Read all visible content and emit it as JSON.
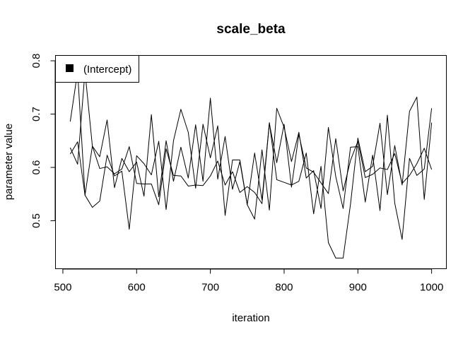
{
  "chart_data": {
    "type": "line",
    "title": "scale_beta",
    "xlabel": "iteration",
    "ylabel": "parameter value",
    "xlim": [
      490,
      1020
    ],
    "ylim": [
      0.41,
      0.81
    ],
    "x_ticks": [
      500,
      600,
      700,
      800,
      900,
      1000
    ],
    "y_ticks": [
      0.5,
      0.6,
      0.7,
      0.8
    ],
    "x_tick_labels": [
      "500",
      "600",
      "700",
      "800",
      "900",
      "1000"
    ],
    "y_tick_labels": [
      "0.5",
      "0.6",
      "0.7",
      "0.8"
    ],
    "grid": false,
    "legend": {
      "position": "top-left",
      "entries": [
        "(Intercept)"
      ]
    },
    "x": [
      510,
      520,
      530,
      540,
      550,
      560,
      570,
      580,
      590,
      600,
      610,
      620,
      630,
      640,
      650,
      660,
      670,
      680,
      690,
      700,
      710,
      720,
      730,
      740,
      750,
      760,
      770,
      780,
      790,
      800,
      810,
      820,
      830,
      840,
      850,
      860,
      870,
      880,
      890,
      900,
      910,
      920,
      930,
      940,
      950,
      960,
      970,
      980,
      990,
      1000
    ],
    "series": [
      {
        "color": "#000000",
        "values": [
          0.686,
          0.78,
          0.548,
          0.64,
          0.62,
          0.689,
          0.562,
          0.617,
          0.592,
          0.61,
          0.546,
          0.699,
          0.545,
          0.65,
          0.574,
          0.638,
          0.58,
          0.68,
          0.574,
          0.73,
          0.578,
          0.658,
          0.559,
          0.611,
          0.53,
          0.503,
          0.633,
          0.52,
          0.711,
          0.675,
          0.611,
          0.666,
          0.58,
          0.594,
          0.523,
          0.675,
          0.583,
          0.523,
          0.638,
          0.639,
          0.535,
          0.623,
          0.519,
          0.698,
          0.533,
          0.465,
          0.617,
          0.585,
          0.597,
          0.711
        ]
      },
      {
        "color": "#000000",
        "values": [
          0.625,
          0.648,
          0.548,
          0.525,
          0.537,
          0.623,
          0.584,
          0.593,
          0.484,
          0.622,
          0.607,
          0.586,
          0.649,
          0.521,
          0.65,
          0.709,
          0.666,
          0.561,
          0.681,
          0.618,
          0.678,
          0.51,
          0.614,
          0.614,
          0.53,
          0.627,
          0.539,
          0.684,
          0.577,
          0.572,
          0.567,
          0.574,
          0.627,
          0.513,
          0.602,
          0.459,
          0.43,
          0.43,
          0.531,
          0.655,
          0.592,
          0.602,
          0.683,
          0.549,
          0.641,
          0.567,
          0.705,
          0.732,
          0.54,
          0.684
        ]
      },
      {
        "color": "#000000",
        "values": [
          0.637,
          0.606,
          0.78,
          0.64,
          0.598,
          0.601,
          0.588,
          0.597,
          0.639,
          0.57,
          0.569,
          0.569,
          0.53,
          0.635,
          0.585,
          0.584,
          0.565,
          0.567,
          0.566,
          0.584,
          0.612,
          0.567,
          0.592,
          0.553,
          0.564,
          0.553,
          0.532,
          0.683,
          0.609,
          0.681,
          0.563,
          0.662,
          0.599,
          0.591,
          0.571,
          0.551,
          0.654,
          0.556,
          0.613,
          0.649,
          0.581,
          0.587,
          0.599,
          0.596,
          0.626,
          0.57,
          0.585,
          0.607,
          0.636,
          0.596
        ]
      }
    ]
  }
}
